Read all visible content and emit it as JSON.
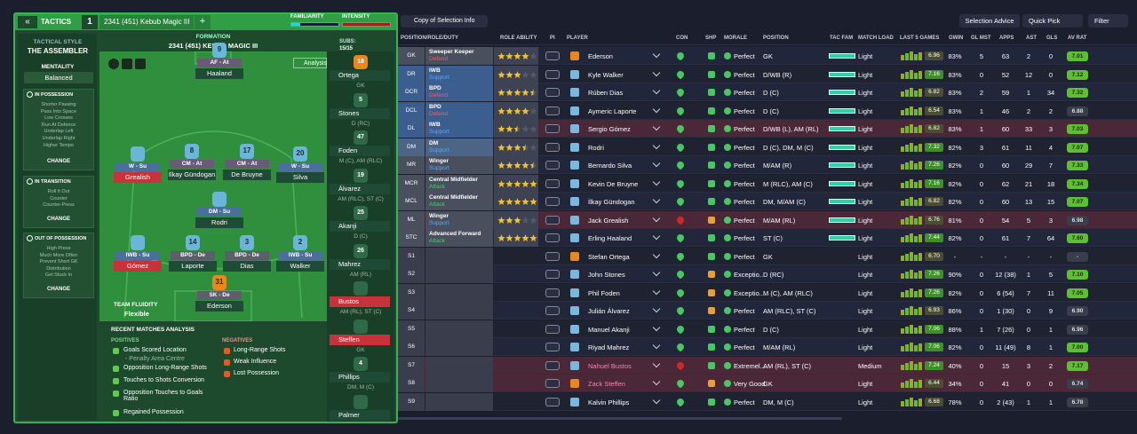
{
  "header": {
    "tab": "TACTICS",
    "slot": "1",
    "tactic": "2341 (451) Kebub Magic III",
    "add": "+",
    "familiarity": "FAMILIARITY",
    "intensity": "INTENSITY"
  },
  "style": {
    "label": "TACTICAL STYLE",
    "value": "THE ASSEMBLER",
    "mentality_label": "MENTALITY",
    "mentality": "Balanced"
  },
  "phases": [
    {
      "title": "IN POSSESSION",
      "items": [
        "Shorter Passing",
        "Pass Into Space",
        "Low Crosses",
        "Run At Defence",
        "Underlap Left",
        "Underlap Right",
        "Higher Tempo"
      ],
      "button": "CHANGE"
    },
    {
      "title": "IN TRANSITION",
      "items": [
        "Roll It Out",
        "Counter",
        "Counter-Press"
      ],
      "button": "CHANGE"
    },
    {
      "title": "OUT OF POSSESSION",
      "items": [
        "High Press",
        "Much More Often",
        "Prevent Short GK",
        "Distribution",
        "Get Stuck In"
      ],
      "button": "CHANGE"
    }
  ],
  "pitch": {
    "formation_label": "FORMATION",
    "formation": "2341 (451) KEBUB MAGIC III",
    "subs_label": "SUBS:",
    "subs_count": "15/15",
    "analysis": "Analysis",
    "fluidity_label": "TEAM FLUIDITY",
    "fluidity": "Flexible",
    "players": [
      {
        "name": "Haaland",
        "role": "AF - At",
        "number": "9"
      },
      {
        "name": "Grealish",
        "role": "W - Su"
      },
      {
        "name": "İlkay Gündogan",
        "role": "CM - At",
        "number": "8"
      },
      {
        "name": "De Bruyne",
        "role": "CM - At",
        "number": "17"
      },
      {
        "name": "Silva",
        "role": "W - Su",
        "number": "20"
      },
      {
        "name": "Rodri",
        "role": "DM - Su"
      },
      {
        "name": "Gómez",
        "role": "IWB - Su"
      },
      {
        "name": "Laporte",
        "role": "BPD - De",
        "number": "14"
      },
      {
        "name": "Dias",
        "role": "BPD - De",
        "number": "3"
      },
      {
        "name": "Walker",
        "role": "IWB - Su",
        "number": "2"
      },
      {
        "name": "Ederson",
        "role": "SK - De",
        "number": "31"
      }
    ]
  },
  "subs": [
    {
      "name": "Ortega",
      "position": "GK",
      "number": "18"
    },
    {
      "name": "Stones",
      "position": "D (RC)",
      "number": "5"
    },
    {
      "name": "Foden",
      "position": "M (C), AM (RLC)",
      "number": "47"
    },
    {
      "name": "Álvarez",
      "position": "AM (RLC), ST (C)",
      "number": "19"
    },
    {
      "name": "Akanji",
      "position": "D (C)",
      "number": "25"
    },
    {
      "name": "Mahrez",
      "position": "AM (RL)",
      "number": "26"
    },
    {
      "name": "Bustos",
      "position": "AM (RL), ST (C)"
    },
    {
      "name": "Steffen",
      "position": "GK"
    },
    {
      "name": "Phillips",
      "position": "DM, M (C)",
      "number": "4"
    },
    {
      "name": "Palmer",
      "position": ""
    }
  ],
  "analysis": {
    "title": "RECENT MATCHES ANALYSIS",
    "positives_label": "POSITIVES",
    "positives": [
      "Goals Scored Location",
      "- Penalty Area Centre",
      "Opposition Long-Range Shots",
      "Touches to Shots Conversion",
      "Opposition Touches to Goals Ratio",
      "Regained Possession"
    ],
    "negatives_label": "NEGATIVES",
    "negatives": [
      "Long-Range Shots",
      "Weak Influence",
      "Lost Possession"
    ]
  },
  "toolbar": {
    "view": "Copy of Selection Info",
    "advice": "Selection Advice",
    "quick_pick": "Quick Pick",
    "filter": "Filter"
  },
  "table": {
    "columns": [
      "POSITION/ROLE/DUTY",
      "ROLE ABILITY",
      "PI",
      "PLAYER",
      "CON",
      "SHP",
      "MORALE",
      "POSITION",
      "TAC FAM",
      "MATCH LOAD",
      "LAST 5 GAMES",
      "GWIN",
      "GL MST",
      "APPS",
      "AST",
      "GLS",
      "AV RAT"
    ],
    "rows": [
      {
        "pos": "GK",
        "role": "Sweeper Keeper",
        "duty": "Defend",
        "stars": 4,
        "name": "Ederson",
        "morale": "Perfect",
        "position": "GK",
        "load": "Light",
        "form": "6.96",
        "gwin": "83%",
        "glmst": "5",
        "apps": "63",
        "ast": "2",
        "gls": "0",
        "rating": "7.01"
      },
      {
        "pos": "DR",
        "role": "IWB",
        "duty": "Support",
        "stars": 3,
        "name": "Kyle Walker",
        "morale": "Perfect",
        "position": "D/WB (R)",
        "load": "Light",
        "form": "7.16",
        "gwin": "83%",
        "glmst": "0",
        "apps": "52",
        "ast": "12",
        "gls": "0",
        "rating": "7.12"
      },
      {
        "pos": "DCR",
        "role": "BPD",
        "duty": "Defend",
        "stars": 4.5,
        "name": "Rúben Dias",
        "morale": "Perfect",
        "position": "D (C)",
        "load": "Light",
        "form": "6.82",
        "gwin": "83%",
        "glmst": "2",
        "apps": "59",
        "ast": "1",
        "gls": "34",
        "rating": "7.32"
      },
      {
        "pos": "DCL",
        "role": "BPD",
        "duty": "Defend",
        "stars": 4,
        "name": "Aymeric Laporte",
        "morale": "Perfect",
        "position": "D (C)",
        "load": "Light",
        "form": "6.54",
        "gwin": "83%",
        "glmst": "1",
        "apps": "46",
        "ast": "2",
        "gls": "2",
        "rating": "6.88"
      },
      {
        "pos": "DL",
        "role": "IWB",
        "duty": "Support",
        "stars": 2.5,
        "name": "Sergio Gómez",
        "morale": "Perfect",
        "position": "D/WB (L), AM (RL)",
        "load": "Light",
        "form": "6.82",
        "gwin": "83%",
        "glmst": "1",
        "apps": "60",
        "ast": "33",
        "gls": "3",
        "rating": "7.03"
      },
      {
        "pos": "DM",
        "role": "DM",
        "duty": "Support",
        "stars": 3.5,
        "name": "Rodri",
        "morale": "Perfect",
        "position": "D (C), DM, M (C)",
        "load": "Light",
        "form": "7.32",
        "gwin": "82%",
        "glmst": "3",
        "apps": "61",
        "ast": "11",
        "gls": "4",
        "rating": "7.07"
      },
      {
        "pos": "MR",
        "role": "Winger",
        "duty": "Support",
        "stars": 4.5,
        "name": "Bernardo Silva",
        "morale": "Perfect",
        "position": "M/AM (R)",
        "load": "Light",
        "form": "7.26",
        "gwin": "82%",
        "glmst": "0",
        "apps": "60",
        "ast": "29",
        "gls": "7",
        "rating": "7.33"
      },
      {
        "pos": "MCR",
        "role": "Central Midfielder",
        "duty": "Attack",
        "stars": 5,
        "name": "Kevin De Bruyne",
        "morale": "Perfect",
        "position": "M (RLC), AM (C)",
        "load": "Light",
        "form": "7.16",
        "gwin": "82%",
        "glmst": "0",
        "apps": "62",
        "ast": "21",
        "gls": "18",
        "rating": "7.34"
      },
      {
        "pos": "MCL",
        "role": "Central Midfielder",
        "duty": "Attack",
        "stars": 5,
        "name": "İlkay Gündogan",
        "morale": "Perfect",
        "position": "DM, M/AM (C)",
        "load": "Light",
        "form": "6.82",
        "gwin": "82%",
        "glmst": "0",
        "apps": "60",
        "ast": "13",
        "gls": "15",
        "rating": "7.07"
      },
      {
        "pos": "ML",
        "role": "Winger",
        "duty": "Support",
        "stars": 3,
        "name": "Jack Grealish",
        "morale": "Perfect",
        "position": "M/AM (RL)",
        "load": "Light",
        "form": "6.76",
        "gwin": "81%",
        "glmst": "0",
        "apps": "54",
        "ast": "5",
        "gls": "3",
        "rating": "6.98"
      },
      {
        "pos": "STC",
        "role": "Advanced Forward",
        "duty": "Attack",
        "stars": 5,
        "name": "Erling Haaland",
        "morale": "Perfect",
        "position": "ST (C)",
        "load": "Light",
        "form": "7.44",
        "gwin": "82%",
        "glmst": "0",
        "apps": "61",
        "ast": "7",
        "gls": "64",
        "rating": "7.60"
      },
      {
        "pos": "S1",
        "name": "Stefan Ortega",
        "morale": "Perfect",
        "position": "GK",
        "load": "Light",
        "form": "6.70",
        "gwin": "-",
        "glmst": "-",
        "apps": "-",
        "ast": "-",
        "gls": "-",
        "rating": "-"
      },
      {
        "pos": "S2",
        "name": "John Stones",
        "morale": "Exceptio...",
        "position": "D (RC)",
        "load": "Light",
        "form": "7.26",
        "gwin": "90%",
        "glmst": "0",
        "apps": "12 (38)",
        "ast": "1",
        "gls": "5",
        "rating": "7.10"
      },
      {
        "pos": "S3",
        "name": "Phil Foden",
        "morale": "Exceptio...",
        "position": "M (C), AM (RLC)",
        "load": "Light",
        "form": "7.26",
        "gwin": "82%",
        "glmst": "0",
        "apps": "6 (54)",
        "ast": "7",
        "gls": "11",
        "rating": "7.05"
      },
      {
        "pos": "S4",
        "name": "Julián Álvarez",
        "morale": "Perfect",
        "position": "AM (RLC), ST (C)",
        "load": "Light",
        "form": "6.93",
        "gwin": "86%",
        "glmst": "0",
        "apps": "1 (30)",
        "ast": "0",
        "gls": "9",
        "rating": "6.90"
      },
      {
        "pos": "S5",
        "name": "Manuel Akanji",
        "morale": "Perfect",
        "position": "D (C)",
        "load": "Light",
        "form": "7.06",
        "gwin": "88%",
        "glmst": "1",
        "apps": "7 (26)",
        "ast": "0",
        "gls": "1",
        "rating": "6.96"
      },
      {
        "pos": "S6",
        "name": "Riyad Mahrez",
        "morale": "Perfect",
        "position": "M/AM (RL)",
        "load": "Light",
        "form": "7.06",
        "gwin": "82%",
        "glmst": "0",
        "apps": "11 (49)",
        "ast": "8",
        "gls": "1",
        "rating": "7.00"
      },
      {
        "pos": "S7",
        "name": "Nahuel Bustos",
        "morale": "Extremel...",
        "position": "AM (RL), ST (C)",
        "load": "Medium",
        "form": "7.24",
        "gwin": "40%",
        "glmst": "0",
        "apps": "15",
        "ast": "3",
        "gls": "2",
        "rating": "7.17"
      },
      {
        "pos": "S8",
        "name": "Zack Steffen",
        "morale": "Very Good",
        "position": "GK",
        "load": "Light",
        "form": "6.44",
        "gwin": "34%",
        "glmst": "0",
        "apps": "41",
        "ast": "0",
        "gls": "0",
        "rating": "6.74"
      },
      {
        "pos": "S9",
        "name": "Kalvin Phillips",
        "morale": "Perfect",
        "position": "DM, M (C)",
        "load": "Light",
        "form": "6.68",
        "gwin": "78%",
        "glmst": "0",
        "apps": "2 (43)",
        "ast": "1",
        "gls": "1",
        "rating": "6.78"
      }
    ]
  }
}
